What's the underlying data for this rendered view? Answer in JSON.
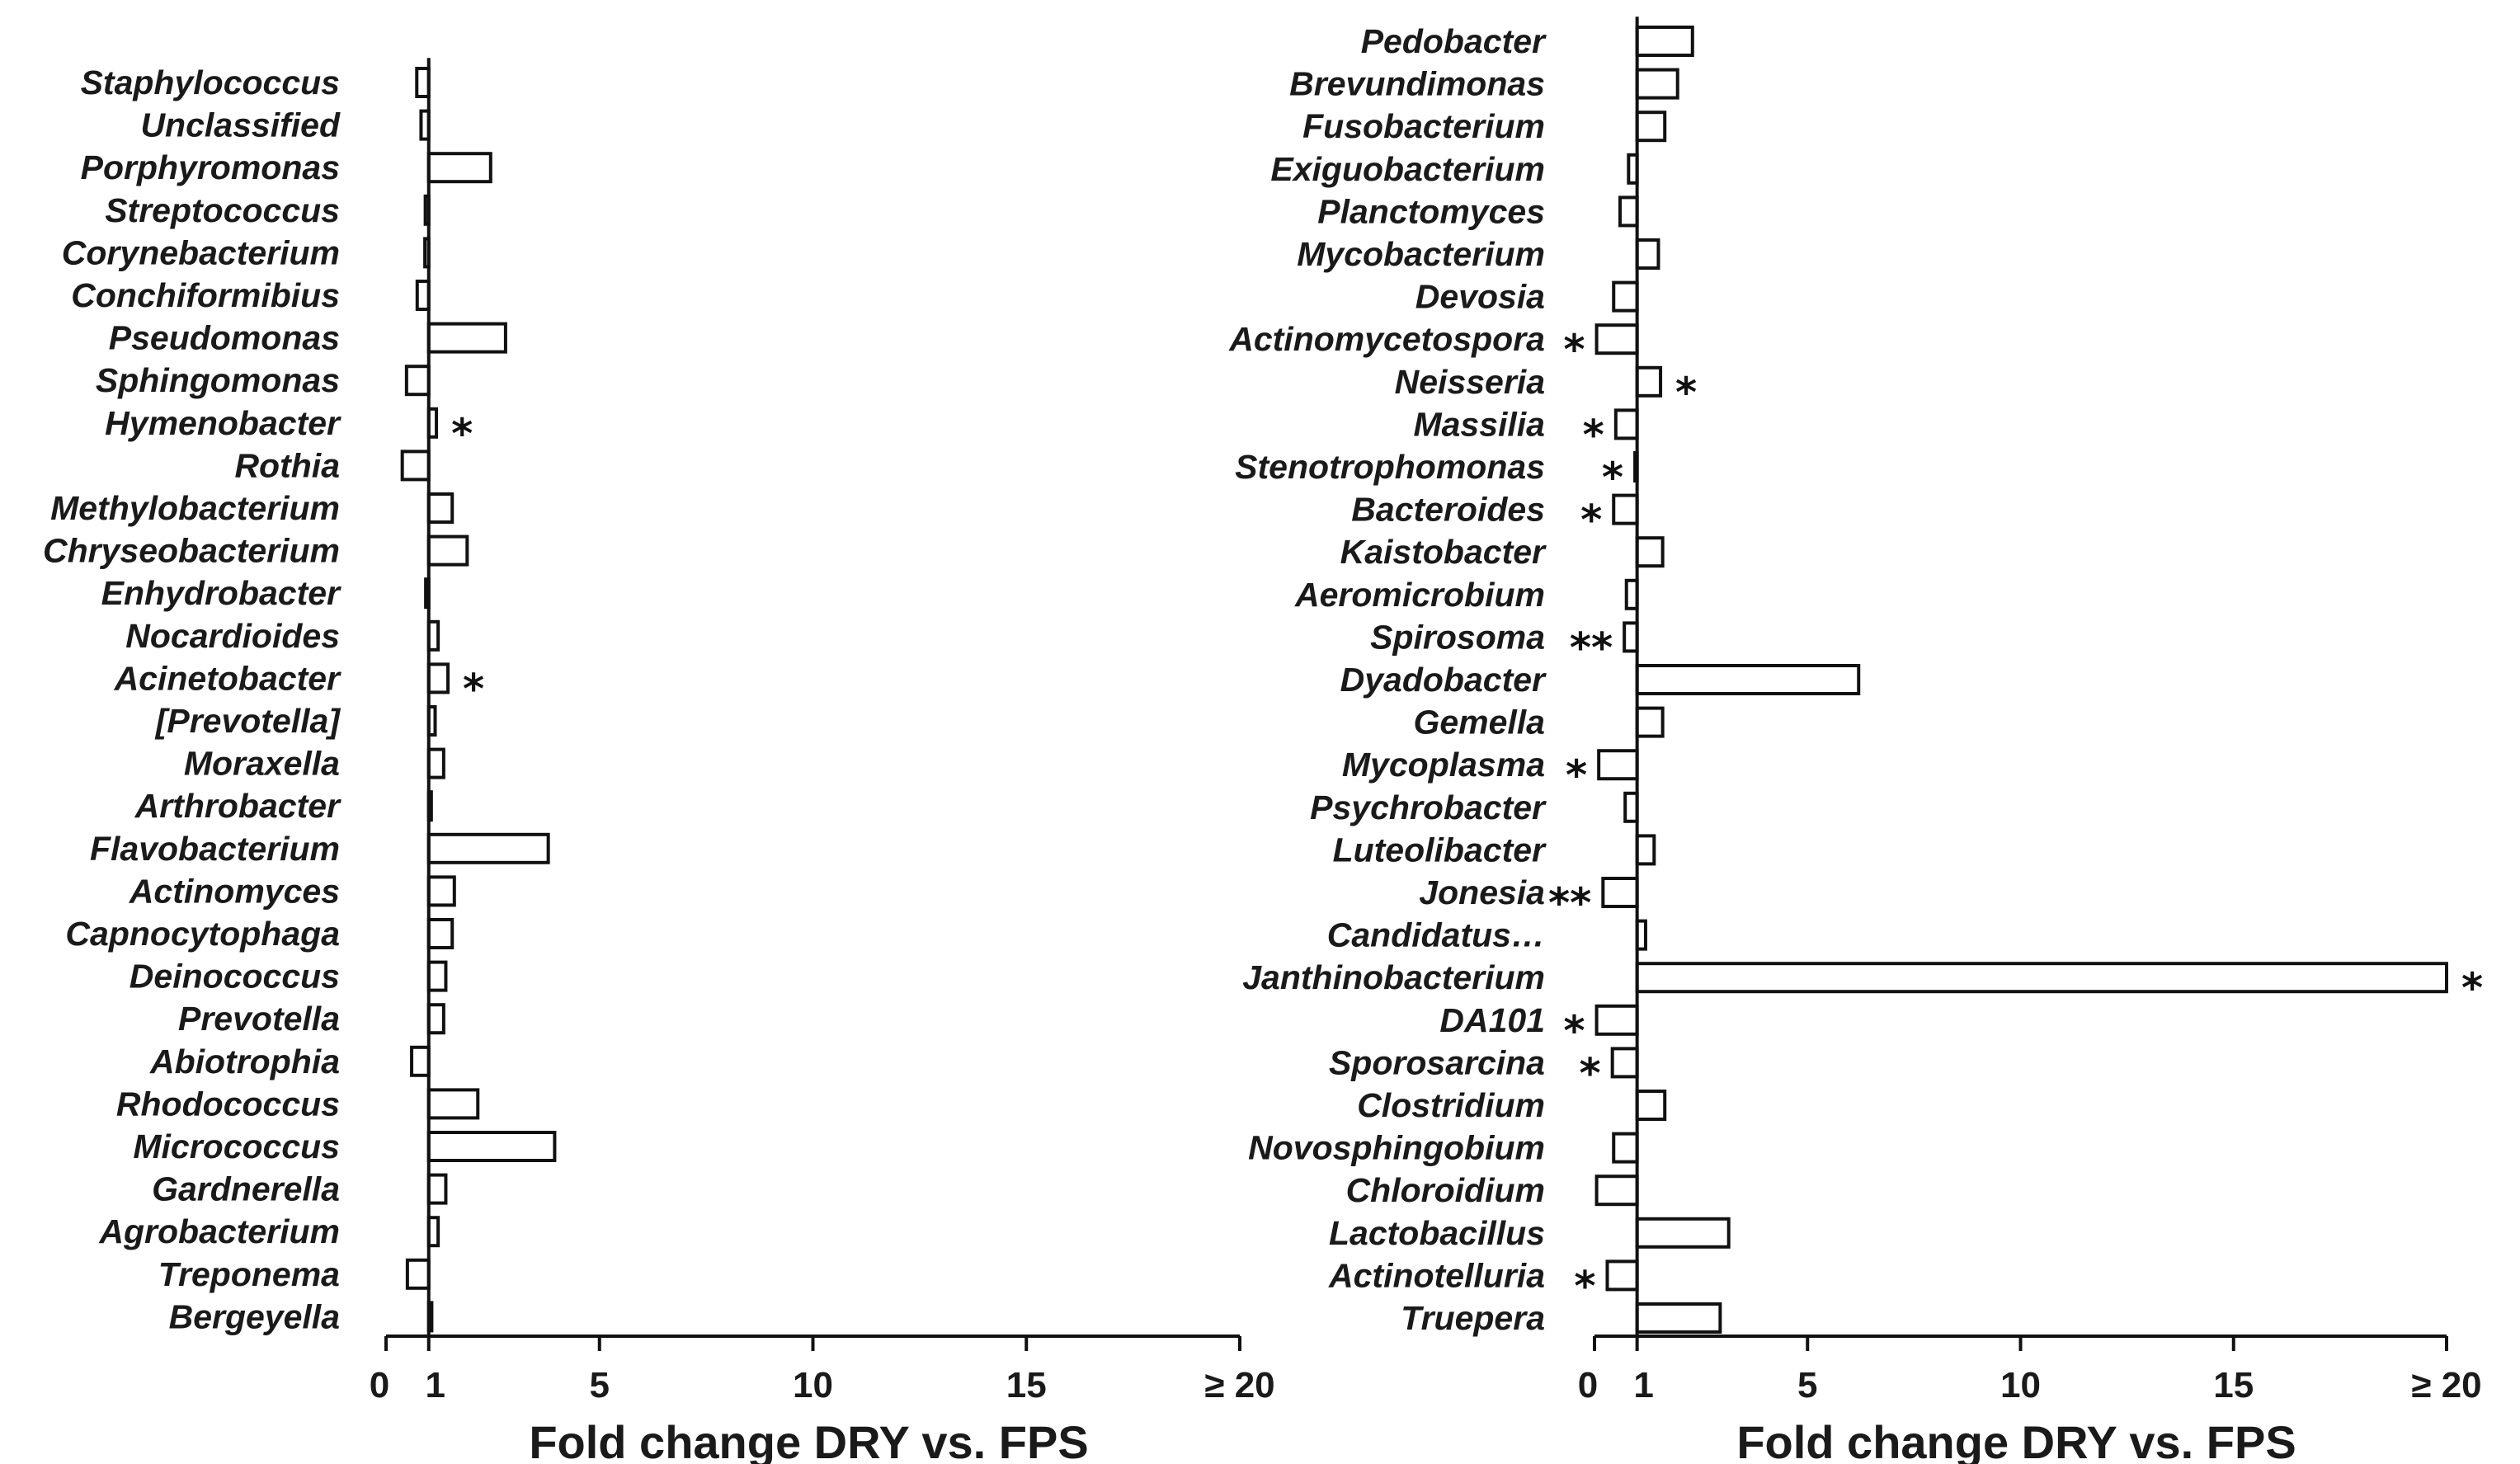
{
  "chart_data": [
    {
      "type": "bar",
      "orientation": "horizontal",
      "xlabel": "Fold change DRY vs. FPS",
      "xlim": [
        0,
        20
      ],
      "xticks": [
        "0",
        "1",
        "5",
        "10",
        "15",
        "≥ 20"
      ],
      "xtick_values": [
        0,
        1,
        5,
        10,
        15,
        20
      ],
      "categories": [
        "Staphylococcus",
        "Unclassified",
        "Porphyromonas",
        "Streptococcus",
        "Corynebacterium",
        "Conchiformibius",
        "Pseudomonas",
        "Sphingomonas",
        "Hymenobacter",
        "Rothia",
        "Methylobacterium",
        "Chryseobacterium",
        "Enhydrobacter",
        "Nocardioides",
        "Acinetobacter",
        "[Prevotella]",
        "Moraxella",
        "Arthrobacter",
        "Flavobacterium",
        "Actinomyces",
        "Capnocytophaga",
        "Deinococcus",
        "Prevotella",
        "Abiotrophia",
        "Rhodococcus",
        "Micrococcus",
        "Gardnerella",
        "Agrobacterium",
        "Treponema",
        "Bergeyella"
      ],
      "values": [
        0.72,
        0.82,
        2.45,
        0.92,
        0.91,
        0.73,
        2.8,
        0.48,
        1.18,
        0.38,
        1.55,
        1.9,
        0.93,
        1.22,
        1.45,
        1.15,
        1.35,
        1.06,
        3.8,
        1.6,
        1.55,
        1.4,
        1.35,
        0.6,
        2.15,
        3.95,
        1.4,
        1.22,
        0.5,
        1.07
      ],
      "significance": [
        "",
        "",
        "",
        "",
        "",
        "",
        "",
        "",
        "*",
        "",
        "",
        "",
        "",
        "",
        "*",
        "",
        "",
        "",
        "",
        "",
        "",
        "",
        "",
        "",
        "",
        "",
        "",
        "",
        "",
        ""
      ]
    },
    {
      "type": "bar",
      "orientation": "horizontal",
      "xlabel": "Fold change DRY vs. FPS",
      "xlim": [
        0,
        20
      ],
      "xticks": [
        "0",
        "1",
        "5",
        "10",
        "15",
        "≥ 20"
      ],
      "xtick_values": [
        0,
        1,
        5,
        10,
        15,
        20
      ],
      "categories": [
        "Pedobacter",
        "Brevundimonas",
        "Fusobacterium",
        "Exiguobacterium",
        "Planctomyces",
        "Mycobacterium",
        "Devosia",
        "Actinomycetospora",
        "Neisseria",
        "Massilia",
        "Stenotrophomonas",
        "Bacteroides",
        "Kaistobacter",
        "Aeromicrobium",
        "Spirosoma",
        "Dyadobacter",
        "Gemella",
        "Mycoplasma",
        "Psychrobacter",
        "Luteolibacter",
        "Jonesia",
        "Candidatus…",
        "Janthinobacterium",
        "DA101",
        "Sporosarcina",
        "Clostridium",
        "Novosphingobium",
        "Chloroidium",
        "Lactobacillus",
        "Actinotelluria",
        "Truepera"
      ],
      "values": [
        2.3,
        1.95,
        1.65,
        0.8,
        0.6,
        1.5,
        0.45,
        0.05,
        1.55,
        0.5,
        0.95,
        0.45,
        1.6,
        0.75,
        0.7,
        6.2,
        1.6,
        0.1,
        0.72,
        1.4,
        0.2,
        1.2,
        20,
        0.05,
        0.42,
        1.65,
        0.45,
        0.05,
        3.15,
        0.3,
        2.95
      ],
      "significance": [
        "",
        "",
        "",
        "",
        "",
        "",
        "",
        "*",
        "*",
        "*",
        "*",
        "*",
        "",
        "",
        "**",
        "",
        "",
        "*",
        "",
        "",
        "**",
        "",
        "*",
        "*",
        "*",
        "",
        "",
        "",
        "",
        "*",
        ""
      ]
    }
  ]
}
